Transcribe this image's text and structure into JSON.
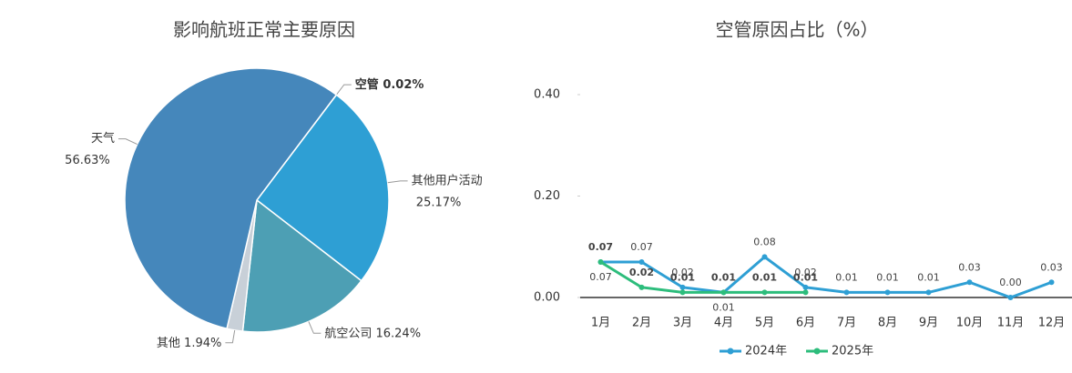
{
  "chart_data": [
    {
      "type": "pie",
      "title": "影响航班正常主要原因",
      "categories": [
        "空管",
        "其他用户活动",
        "航空公司",
        "其他",
        "天气"
      ],
      "values": [
        0.02,
        25.17,
        16.24,
        1.94,
        56.63
      ],
      "value_labels": [
        "0.02%",
        "25.17%",
        "16.24%",
        "1.94%",
        "56.63%"
      ],
      "colors": [
        "#1e6fa8",
        "#2e9fd4",
        "#4d9fb4",
        "#c8d0d8",
        "#4587bb"
      ]
    },
    {
      "type": "line",
      "title": "空管原因占比（%）",
      "categories": [
        "1月",
        "2月",
        "3月",
        "4月",
        "5月",
        "6月",
        "7月",
        "8月",
        "9月",
        "10月",
        "11月",
        "12月"
      ],
      "series": [
        {
          "name": "2024年",
          "color": "#2e9fd4",
          "values": [
            0.07,
            0.07,
            0.02,
            0.01,
            0.08,
            0.02,
            0.01,
            0.01,
            0.01,
            0.03,
            0,
            0.03
          ],
          "value_labels": [
            "0.07",
            "0.07",
            "0.02",
            "0.01",
            "0.08",
            "0.02",
            "0.01",
            "0.01",
            "0.01",
            "0.03",
            "0.00",
            "0.03"
          ]
        },
        {
          "name": "2025年",
          "color": "#2dbd7c",
          "values": [
            0.07,
            0.02,
            0.01,
            0.01,
            0.01,
            0.01,
            null,
            null,
            null,
            null,
            null,
            null
          ],
          "value_labels": [
            "0.07",
            "0.02",
            "0.01",
            "0.01",
            "0.01",
            "0.01",
            null,
            null,
            null,
            null,
            null,
            null
          ]
        }
      ],
      "ylim": [
        0,
        0.4
      ],
      "yticks": [
        {
          "value": 0,
          "label": "0.00"
        },
        {
          "value": 0.2,
          "label": "0.20"
        },
        {
          "value": 0.4,
          "label": "0.40"
        }
      ],
      "legend": "bottom"
    }
  ]
}
